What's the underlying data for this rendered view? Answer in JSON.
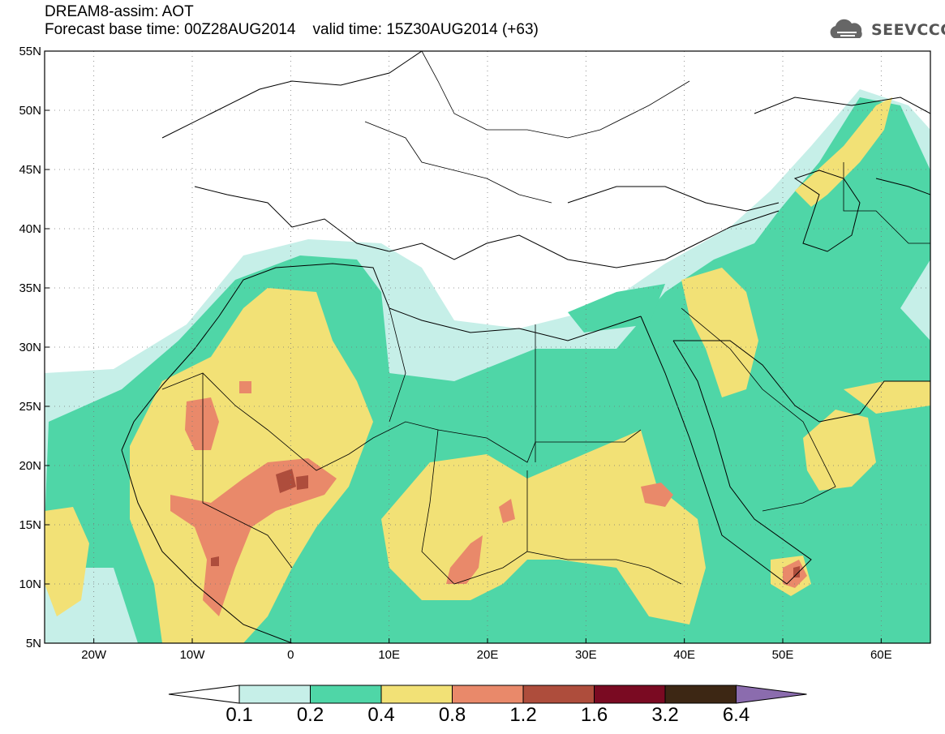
{
  "title": {
    "line1": "DREAM8-assim: AOT",
    "line2": "Forecast base time: 00Z28AUG2014    valid time: 15Z30AUG2014 (+63)"
  },
  "logo": {
    "text": "SEEVCCC",
    "icon": "cloud-logo-icon"
  },
  "map": {
    "lat_range": [
      5,
      55
    ],
    "lon_range": [
      -25,
      65
    ],
    "lat_ticks": [
      "5N",
      "10N",
      "15N",
      "20N",
      "25N",
      "30N",
      "35N",
      "40N",
      "45N",
      "50N",
      "55N"
    ],
    "lon_ticks": [
      "20W",
      "10W",
      "0",
      "10E",
      "20E",
      "30E",
      "40E",
      "50E",
      "60E"
    ],
    "gridlines": "dotted"
  },
  "colorbar": {
    "labels": [
      "0.1",
      "0.2",
      "0.4",
      "0.8",
      "1.2",
      "1.6",
      "3.2",
      "6.4"
    ],
    "colors": [
      "#c6efe8",
      "#4fd6a7",
      "#f2e176",
      "#e9896a",
      "#ae4d3c",
      "#7a0a22",
      "#3d2714",
      "#8b6cae"
    ],
    "under_color": "#ffffff"
  }
}
